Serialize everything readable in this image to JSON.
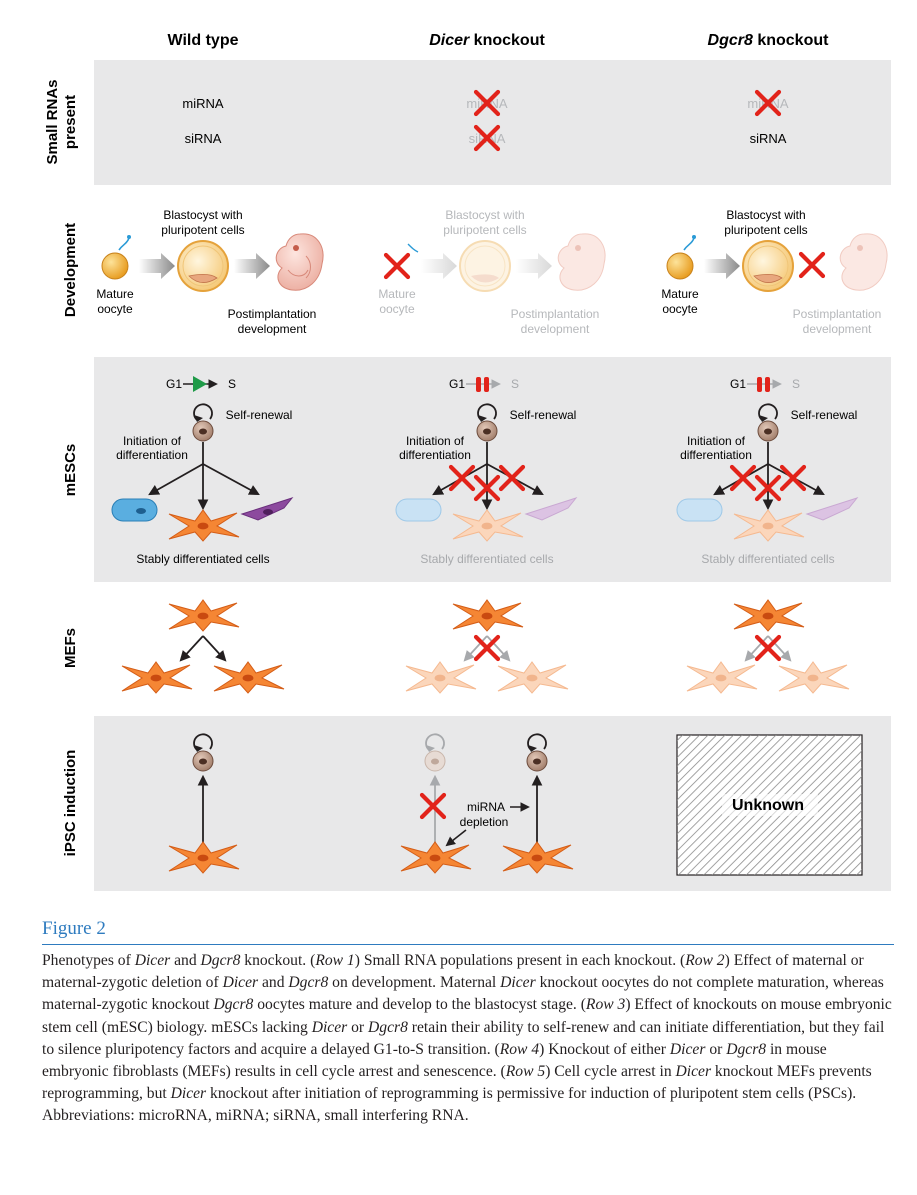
{
  "columns": {
    "wild_type": "Wild type",
    "dicer_italic": "Dicer",
    "dicer_rest": " knockout",
    "dgcr8_italic": "Dgcr8",
    "dgcr8_rest": " knockout"
  },
  "rows": {
    "small_rnas_line1": "Small RNAs",
    "small_rnas_line2": "present",
    "development": "Development",
    "mescs": "mESCs",
    "mefs": "MEFs",
    "ipsc": "iPSC induction"
  },
  "small_rna": {
    "mirna": "miRNA",
    "sirna": "siRNA"
  },
  "development": {
    "blastocyst_line1": "Blastocyst with",
    "blastocyst_line2": "pluripotent cells",
    "oocyte_line1": "Mature",
    "oocyte_line2": "oocyte",
    "postimplant_line1": "Postimplantation",
    "postimplant_line2": "development"
  },
  "mescs": {
    "g1": "G1",
    "s": "S",
    "self_renewal": "Self-renewal",
    "initiation_line1": "Initiation of",
    "initiation_line2": "differentiation",
    "stably": "Stably differentiated cells"
  },
  "ipsc": {
    "mirna_line1": "miRNA",
    "mirna_line2": "depletion",
    "unknown": "Unknown"
  },
  "caption": {
    "title": "Figure 2",
    "segments": [
      {
        "t": "Phenotypes of ",
        "i": false
      },
      {
        "t": "Dicer",
        "i": true
      },
      {
        "t": " and ",
        "i": false
      },
      {
        "t": "Dgcr8",
        "i": true
      },
      {
        "t": " knockout. (",
        "i": false
      },
      {
        "t": "Row 1",
        "i": true
      },
      {
        "t": ") Small RNA populations present in each knockout. (",
        "i": false
      },
      {
        "t": "Row 2",
        "i": true
      },
      {
        "t": ") Effect of maternal or maternal-zygotic deletion of ",
        "i": false
      },
      {
        "t": "Dicer",
        "i": true
      },
      {
        "t": " and ",
        "i": false
      },
      {
        "t": "Dgcr8",
        "i": true
      },
      {
        "t": " on development. Maternal ",
        "i": false
      },
      {
        "t": "Dicer",
        "i": true
      },
      {
        "t": " knockout oocytes do not complete maturation, whereas maternal-zygotic knockout ",
        "i": false
      },
      {
        "t": "Dgcr8",
        "i": true
      },
      {
        "t": " oocytes mature and develop to the blastocyst stage. (",
        "i": false
      },
      {
        "t": "Row 3",
        "i": true
      },
      {
        "t": ") Effect of knockouts on mouse embryonic stem cell (mESC) biology. mESCs lacking ",
        "i": false
      },
      {
        "t": "Dicer",
        "i": true
      },
      {
        "t": " or ",
        "i": false
      },
      {
        "t": "Dgcr8",
        "i": true
      },
      {
        "t": " retain their ability to self-renew and can initiate differentiation, but they fail to silence pluripotency factors and acquire a delayed G1-to-S transition. (",
        "i": false
      },
      {
        "t": "Row 4",
        "i": true
      },
      {
        "t": ") Knockout of either ",
        "i": false
      },
      {
        "t": "Dicer",
        "i": true
      },
      {
        "t": " or ",
        "i": false
      },
      {
        "t": "Dgcr8",
        "i": true
      },
      {
        "t": " in mouse embryonic fibroblasts (MEFs) results in cell cycle arrest and senescence. (",
        "i": false
      },
      {
        "t": "Row 5",
        "i": true
      },
      {
        "t": ") Cell cycle arrest in ",
        "i": false
      },
      {
        "t": "Dicer",
        "i": true
      },
      {
        "t": " knockout MEFs prevents reprogramming, but ",
        "i": false
      },
      {
        "t": "Dicer",
        "i": true
      },
      {
        "t": " knockout after initiation of reprogramming is permissive for induction of pluripotent stem cells (PSCs). Abbreviations: microRNA, miRNA; siRNA, small interfering RNA.",
        "i": false
      }
    ]
  },
  "colors": {
    "panel_bg": "#e8e8e9",
    "cross_red": "#e2231a",
    "mef_orange": "#f58634",
    "g1s_green": "#1f9a48",
    "blue_cell": "#5aaee0",
    "purple_cell": "#8c4a9e",
    "oocyte_yellow": "#f5b52e",
    "caption_blue": "#2e7bbf"
  }
}
